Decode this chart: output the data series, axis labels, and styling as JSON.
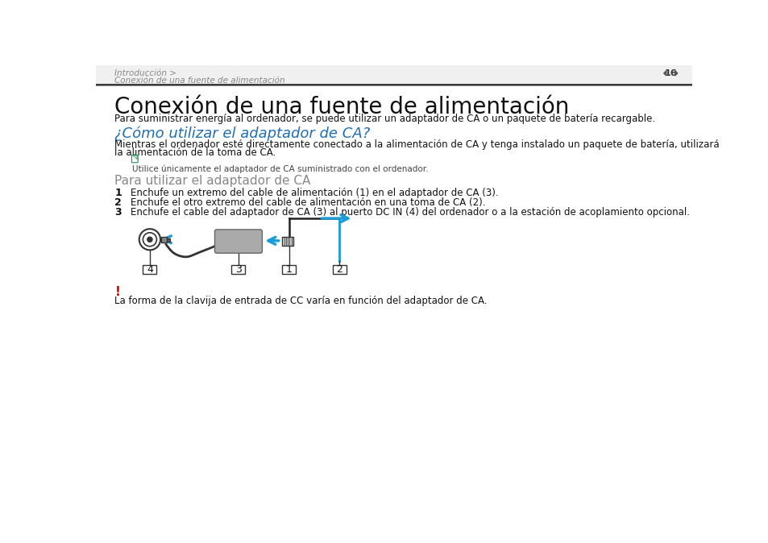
{
  "bg_color": "#ffffff",
  "header_text1": "Introducción >",
  "header_text2": "Conexión de una fuente de alimentación",
  "page_num": "16",
  "title": "Conexión de una fuente de alimentación",
  "subtitle_para": "Para suministrar energía al ordenador, se puede utilizar un adaptador de CA o un paquete de batería recargable.",
  "blue_heading": "¿Cómo utilizar el adaptador de CA?",
  "blue_color": "#1e6eb5",
  "body_line1": "Mientras el ordenador esté directamente conectado a la alimentación de CA y tenga instalado un paquete de batería, utilizará",
  "body_line2": "la alimentación de la toma de CA.",
  "note_icon_color": "#1e9050",
  "note_text": "Utilice únicamente el adaptador de CA suministrado con el ordenador.",
  "section_heading": "Para utilizar el adaptador de CA",
  "section_heading_color": "#888888",
  "steps": [
    "Enchufe un extremo del cable de alimentación (1) en el adaptador de CA (3).",
    "Enchufe el otro extremo del cable de alimentación en una toma de CA (2).",
    "Enchufe el cable del adaptador de CA (3) al puerto DC IN (4) del ordenador o a la estación de acoplamiento opcional."
  ],
  "warning_color": "#cc0000",
  "warning_text": "La forma de la clavija de entrada de CC varía en función del adaptador de CA.",
  "diagram_arrow_color": "#1a9dd9",
  "diagram_line_color": "#000000",
  "diagram_box_color": "#888888"
}
